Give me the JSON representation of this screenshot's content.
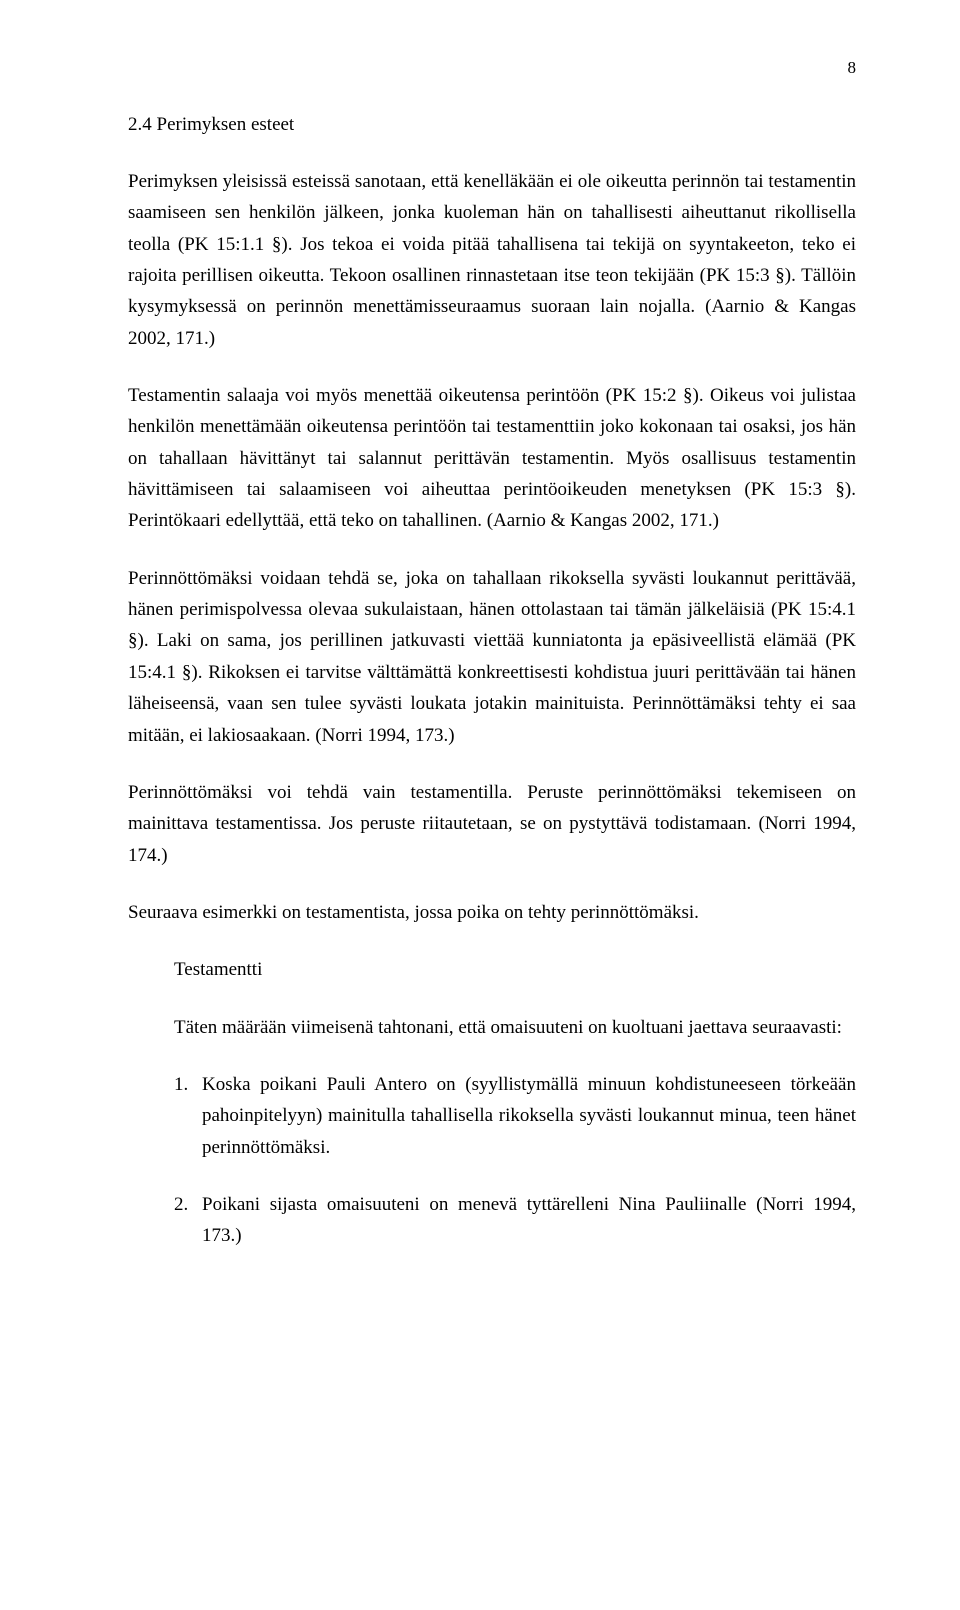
{
  "page_number": "8",
  "heading": "2.4 Perimyksen esteet",
  "paragraphs": {
    "p1": "Perimyksen yleisissä esteissä sanotaan, että kenelläkään ei ole oikeutta perinnön tai testamentin saamiseen sen henkilön jälkeen, jonka kuoleman hän on tahallisesti aiheuttanut rikollisella teolla (PK 15:1.1 §). Jos tekoa ei voida pitää tahallisena tai tekijä on syyntakeeton, teko ei rajoita perillisen oikeutta. Tekoon osallinen rinnastetaan itse teon tekijään (PK 15:3 §). Tällöin kysymyksessä on perinnön menettämisseuraamus suoraan lain nojalla. (Aarnio & Kangas 2002, 171.)",
    "p2": "Testamentin salaaja voi myös menettää oikeutensa perintöön (PK 15:2 §). Oikeus voi julistaa henkilön menettämään oikeutensa perintöön tai testamenttiin joko kokonaan tai osaksi, jos hän on tahallaan hävittänyt tai salannut perittävän testamentin. Myös osallisuus testamentin hävittämiseen tai salaamiseen voi aiheuttaa perintöoikeuden menetyksen (PK 15:3 §). Perintökaari edellyttää, että teko on tahallinen. (Aarnio & Kangas 2002, 171.)",
    "p3": "Perinnöttömäksi voidaan tehdä se, joka on tahallaan rikoksella syvästi loukannut perittävää, hänen perimispolvessa olevaa sukulaistaan, hänen ottolastaan tai tämän jälkeläisiä (PK 15:4.1 §). Laki on sama, jos perillinen jatkuvasti viettää kunniatonta ja epäsiveellistä elämää (PK 15:4.1 §). Rikoksen ei tarvitse välttämättä konkreettisesti kohdistua juuri perittävään tai hänen läheiseensä, vaan sen tulee syvästi loukata jotakin mainituista. Perinnöttämäksi tehty ei saa mitään, ei lakiosaakaan. (Norri 1994, 173.)",
    "p4": "Perinnöttömäksi voi tehdä vain testamentilla. Peruste perinnöttömäksi tekemiseen on mainittava testamentissa. Jos peruste riitautetaan, se on pystyttävä todistamaan. (Norri 1994, 174.)",
    "p5": "Seuraava esimerkki on testamentista, jossa poika on tehty perinnöttömäksi.",
    "testamentti_title": "Testamentti",
    "testamentti_intro": "Täten määrään viimeisenä tahtonani, että omaisuuteni on kuoltuani jaettava seuraavasti:",
    "item1": "Koska poikani Pauli Antero on (syyllistymällä minuun kohdistuneeseen törkeään pahoinpitelyyn) mainitulla tahallisella rikoksella syvästi loukannut minua, teen hänet perinnöttömäksi.",
    "item2": "Poikani sijasta omaisuuteni on menevä tyttärelleni Nina Pauliinalle (Norri 1994, 173.)"
  },
  "list_numbers": {
    "n1": "1.",
    "n2": "2."
  },
  "colors": {
    "text": "#000000",
    "background": "#ffffff"
  },
  "typography": {
    "body_font": "Garamond / Times-like serif",
    "body_size_pt": 14,
    "line_height": 1.65,
    "align": "justify"
  }
}
